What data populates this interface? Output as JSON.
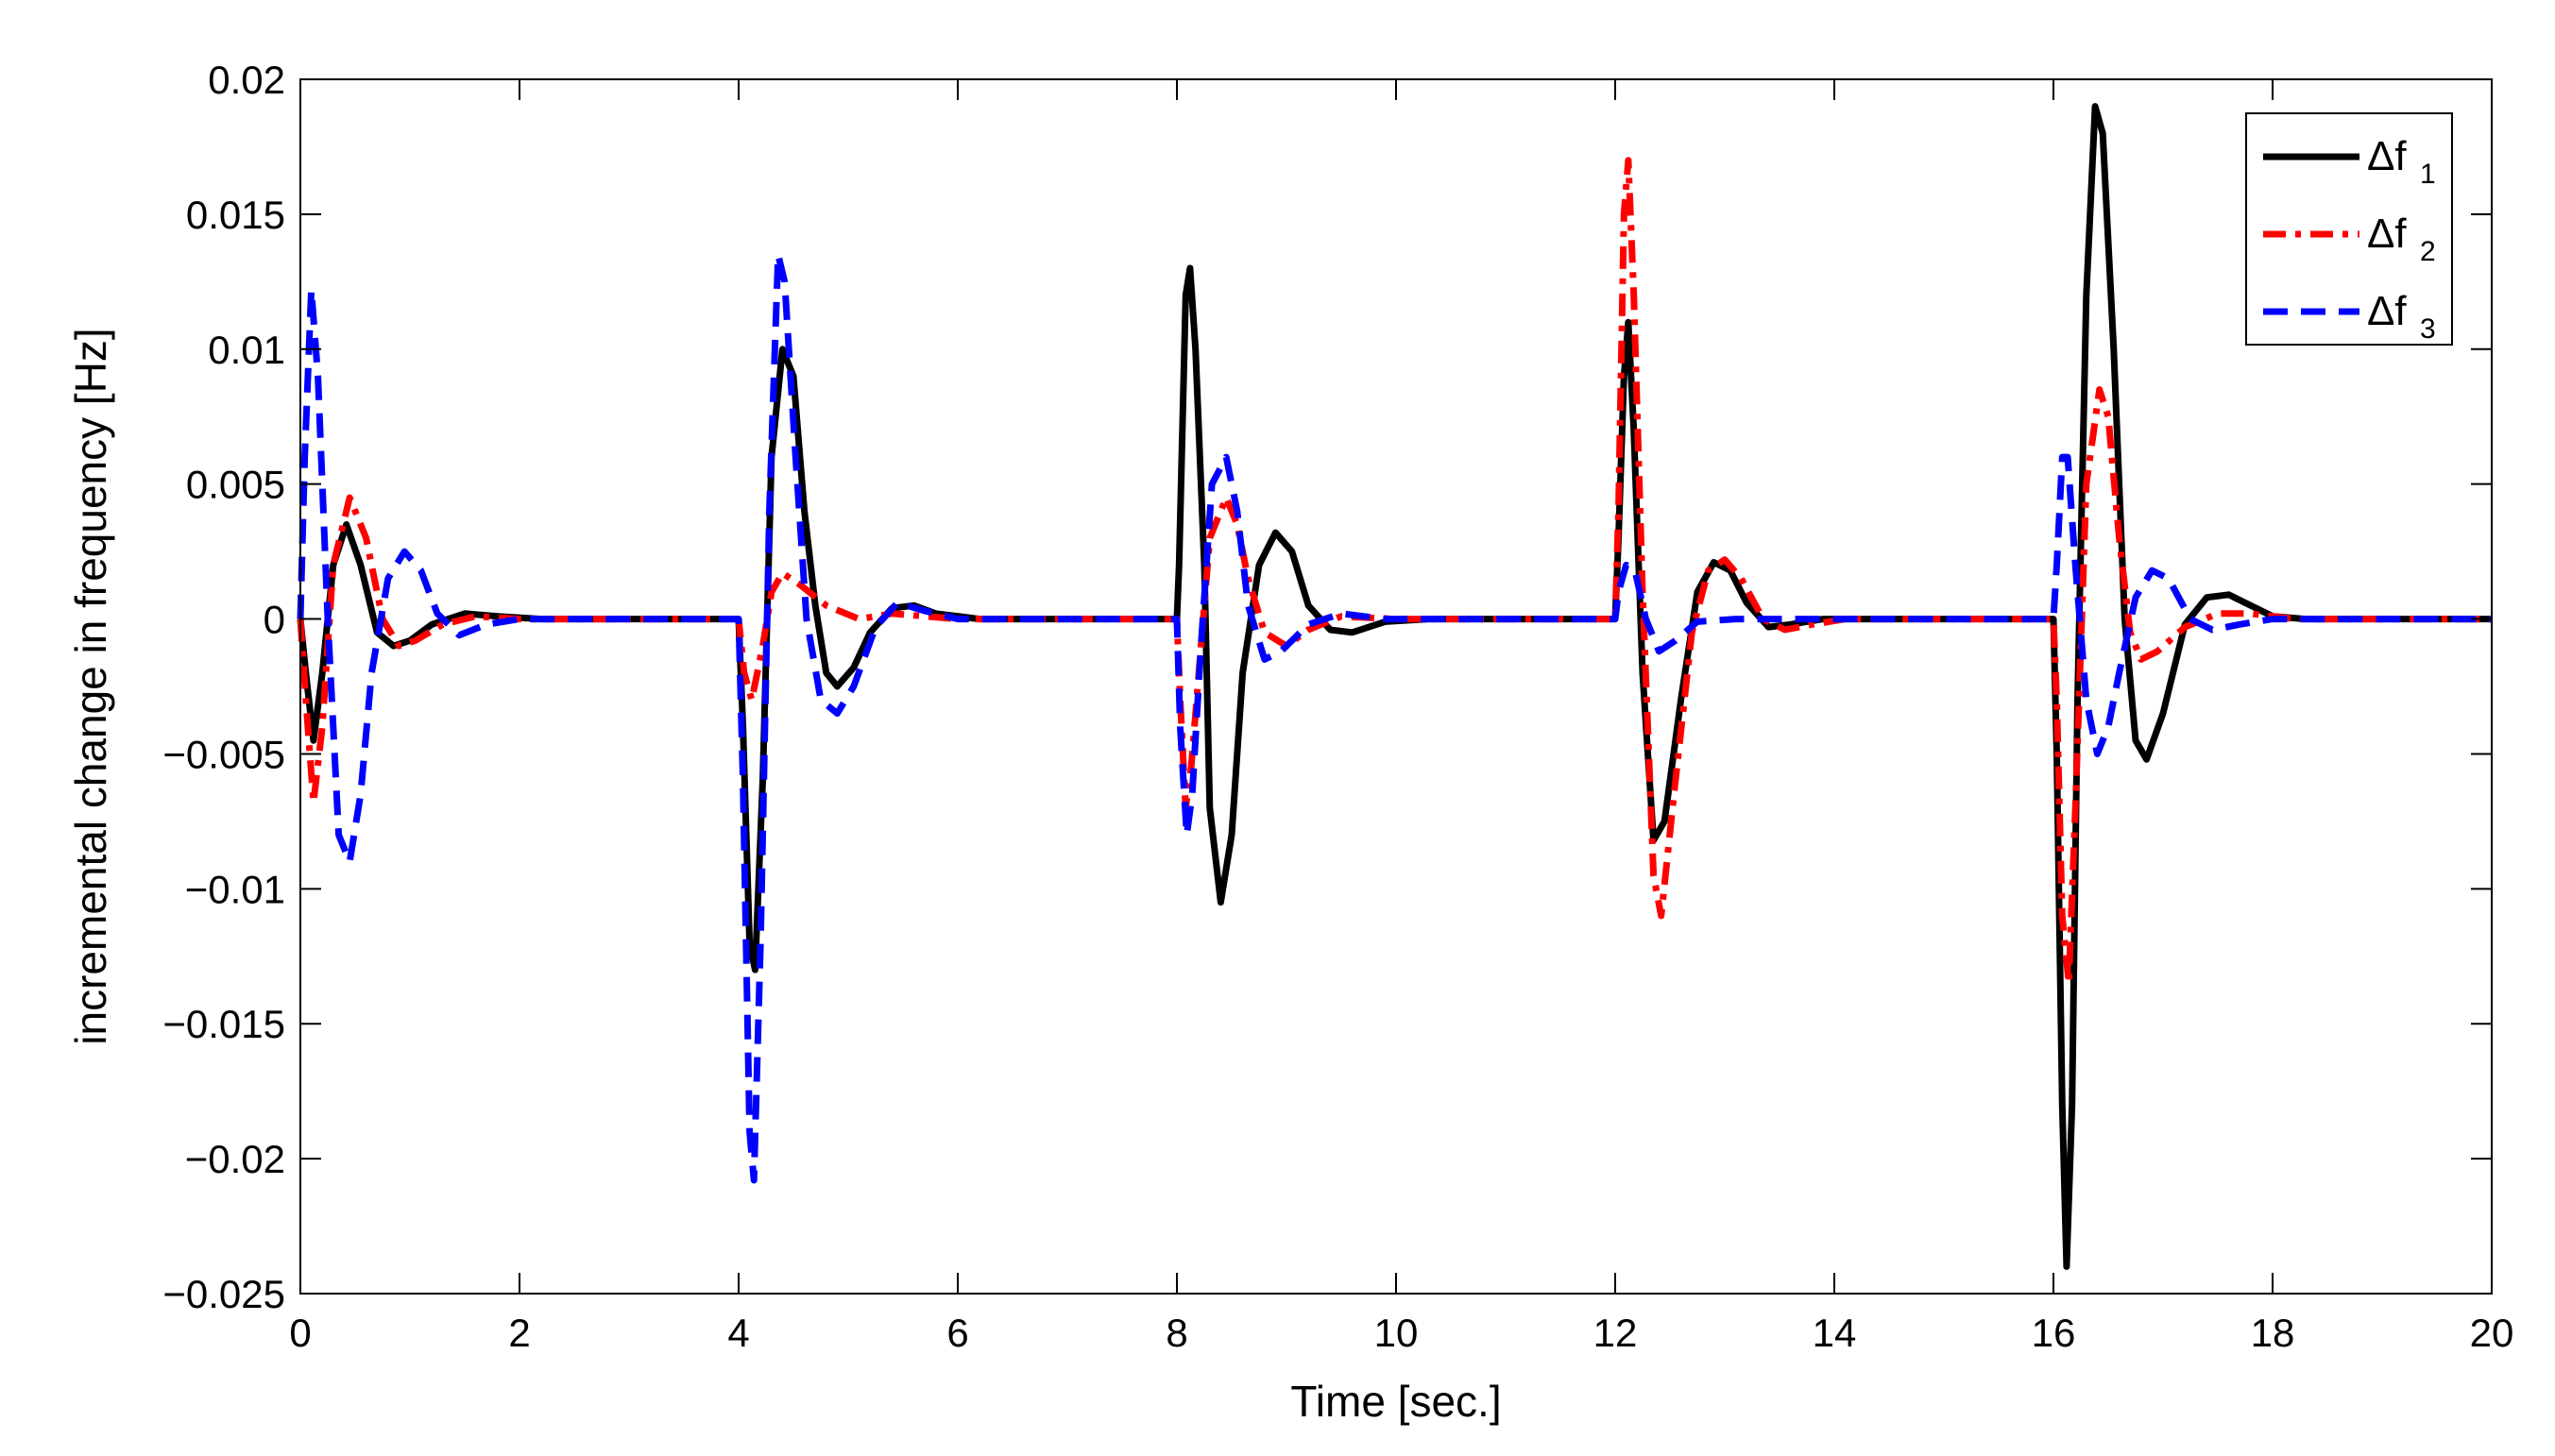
{
  "chart_data": {
    "type": "line",
    "title": "",
    "xlabel": "Time [sec.]",
    "ylabel": "incremental change in frequency [Hz]",
    "xlim": [
      0,
      20
    ],
    "ylim": [
      -0.025,
      0.02
    ],
    "xticks": [
      0,
      2,
      4,
      6,
      8,
      10,
      12,
      14,
      16,
      18,
      20
    ],
    "xtick_labels": [
      "0",
      "2",
      "4",
      "6",
      "8",
      "10",
      "12",
      "14",
      "16",
      "18",
      "20"
    ],
    "yticks": [
      0.02,
      0.015,
      0.01,
      0.005,
      0,
      -0.005,
      -0.01,
      -0.015,
      -0.02,
      -0.025
    ],
    "ytick_labels": [
      "0.02",
      "0.015",
      "0.01",
      "0.005",
      "0",
      "−0.005",
      "−0.01",
      "−0.015",
      "−0.02",
      "−0.025"
    ],
    "grid": false,
    "legend_position": "top-right",
    "series": [
      {
        "name": "Δf1",
        "label_main": "Δf",
        "label_sub": "1",
        "color": "#000000",
        "style": "solid",
        "points": [
          [
            0,
            0
          ],
          [
            0.05,
            -0.002
          ],
          [
            0.12,
            -0.0045
          ],
          [
            0.2,
            -0.002
          ],
          [
            0.3,
            0.002
          ],
          [
            0.42,
            0.0035
          ],
          [
            0.55,
            0.002
          ],
          [
            0.7,
            -0.0005
          ],
          [
            0.85,
            -0.001
          ],
          [
            1.0,
            -0.0008
          ],
          [
            1.2,
            -0.0002
          ],
          [
            1.5,
            0.0002
          ],
          [
            1.8,
            0.0001
          ],
          [
            2.2,
            0
          ],
          [
            4.0,
            0
          ],
          [
            4.04,
            -0.004
          ],
          [
            4.1,
            -0.012
          ],
          [
            4.15,
            -0.013
          ],
          [
            4.22,
            -0.006
          ],
          [
            4.3,
            0.006
          ],
          [
            4.4,
            0.01
          ],
          [
            4.5,
            0.009
          ],
          [
            4.6,
            0.004
          ],
          [
            4.7,
            0.0005
          ],
          [
            4.8,
            -0.002
          ],
          [
            4.9,
            -0.0025
          ],
          [
            5.05,
            -0.0018
          ],
          [
            5.2,
            -0.0005
          ],
          [
            5.4,
            0.0004
          ],
          [
            5.6,
            0.0005
          ],
          [
            5.8,
            0.0002
          ],
          [
            6.2,
            0
          ],
          [
            8.0,
            0
          ],
          [
            8.02,
            0.002
          ],
          [
            8.08,
            0.012
          ],
          [
            8.12,
            0.013
          ],
          [
            8.17,
            0.01
          ],
          [
            8.25,
            0.002
          ],
          [
            8.3,
            -0.007
          ],
          [
            8.4,
            -0.0105
          ],
          [
            8.5,
            -0.008
          ],
          [
            8.6,
            -0.002
          ],
          [
            8.75,
            0.002
          ],
          [
            8.9,
            0.0032
          ],
          [
            9.05,
            0.0025
          ],
          [
            9.2,
            0.0005
          ],
          [
            9.4,
            -0.0004
          ],
          [
            9.6,
            -0.0005
          ],
          [
            9.9,
            -0.0001
          ],
          [
            10.3,
            0
          ],
          [
            12.0,
            0
          ],
          [
            12.03,
            0.003
          ],
          [
            12.08,
            0.009
          ],
          [
            12.12,
            0.011
          ],
          [
            12.17,
            0.007
          ],
          [
            12.25,
            -0.002
          ],
          [
            12.35,
            -0.0082
          ],
          [
            12.45,
            -0.0075
          ],
          [
            12.6,
            -0.003
          ],
          [
            12.75,
            0.001
          ],
          [
            12.9,
            0.0021
          ],
          [
            13.05,
            0.0018
          ],
          [
            13.2,
            0.0006
          ],
          [
            13.4,
            -0.0003
          ],
          [
            13.6,
            -0.0002
          ],
          [
            13.9,
            0
          ],
          [
            16.0,
            0
          ],
          [
            16.03,
            -0.005
          ],
          [
            16.08,
            -0.018
          ],
          [
            16.12,
            -0.024
          ],
          [
            16.17,
            -0.018
          ],
          [
            16.22,
            -0.003
          ],
          [
            16.3,
            0.012
          ],
          [
            16.38,
            0.019
          ],
          [
            16.45,
            0.018
          ],
          [
            16.55,
            0.01
          ],
          [
            16.65,
            0.0
          ],
          [
            16.75,
            -0.0045
          ],
          [
            16.85,
            -0.0052
          ],
          [
            17.0,
            -0.0035
          ],
          [
            17.2,
            -0.0002
          ],
          [
            17.4,
            0.0008
          ],
          [
            17.6,
            0.0009
          ],
          [
            17.8,
            0.0005
          ],
          [
            18.0,
            0.0001
          ],
          [
            18.3,
            0
          ],
          [
            20,
            0
          ]
        ]
      },
      {
        "name": "Δf2",
        "label_main": "Δf",
        "label_sub": "2",
        "color": "#ff0000",
        "style": "dashdot",
        "points": [
          [
            0,
            0
          ],
          [
            0.05,
            -0.003
          ],
          [
            0.12,
            -0.0068
          ],
          [
            0.2,
            -0.004
          ],
          [
            0.3,
            0.002
          ],
          [
            0.45,
            0.0045
          ],
          [
            0.6,
            0.003
          ],
          [
            0.75,
            0.0
          ],
          [
            0.9,
            -0.001
          ],
          [
            1.05,
            -0.0008
          ],
          [
            1.3,
            -0.0002
          ],
          [
            1.6,
            0.0001
          ],
          [
            2.0,
            0
          ],
          [
            4.0,
            0
          ],
          [
            4.05,
            -0.002
          ],
          [
            4.12,
            -0.003
          ],
          [
            4.22,
            -0.001
          ],
          [
            4.3,
            0.001
          ],
          [
            4.4,
            0.0017
          ],
          [
            4.55,
            0.0013
          ],
          [
            4.8,
            0.0005
          ],
          [
            5.1,
            0.0
          ],
          [
            5.4,
            0.0002
          ],
          [
            5.7,
            0.0001
          ],
          [
            6.0,
            0
          ],
          [
            8.0,
            0
          ],
          [
            8.03,
            -0.003
          ],
          [
            8.08,
            -0.007
          ],
          [
            8.13,
            -0.0055
          ],
          [
            8.2,
            -0.002
          ],
          [
            8.3,
            0.003
          ],
          [
            8.45,
            0.0045
          ],
          [
            8.55,
            0.0035
          ],
          [
            8.65,
            0.0015
          ],
          [
            8.8,
            -0.0005
          ],
          [
            9.0,
            -0.001
          ],
          [
            9.2,
            -0.0004
          ],
          [
            9.5,
            0.0001
          ],
          [
            10.0,
            0
          ],
          [
            12.0,
            0
          ],
          [
            12.03,
            0.004
          ],
          [
            12.08,
            0.015
          ],
          [
            12.12,
            0.017
          ],
          [
            12.17,
            0.012
          ],
          [
            12.25,
            0.001
          ],
          [
            12.35,
            -0.0095
          ],
          [
            12.42,
            -0.011
          ],
          [
            12.55,
            -0.006
          ],
          [
            12.7,
            -0.0005
          ],
          [
            12.85,
            0.0018
          ],
          [
            13.0,
            0.0022
          ],
          [
            13.15,
            0.0015
          ],
          [
            13.35,
            0.0
          ],
          [
            13.55,
            -0.0004
          ],
          [
            13.8,
            -0.0002
          ],
          [
            14.1,
            0
          ],
          [
            16.0,
            0
          ],
          [
            16.03,
            -0.003
          ],
          [
            16.08,
            -0.011
          ],
          [
            16.14,
            -0.0135
          ],
          [
            16.2,
            -0.007
          ],
          [
            16.3,
            0.005
          ],
          [
            16.42,
            0.0085
          ],
          [
            16.5,
            0.0075
          ],
          [
            16.6,
            0.003
          ],
          [
            16.7,
            -0.0005
          ],
          [
            16.8,
            -0.0015
          ],
          [
            16.95,
            -0.0012
          ],
          [
            17.2,
            -0.0003
          ],
          [
            17.5,
            0.0002
          ],
          [
            17.8,
            0.0002
          ],
          [
            18.2,
            0
          ],
          [
            20,
            0
          ]
        ]
      },
      {
        "name": "Δf3",
        "label_main": "Δf",
        "label_sub": "3",
        "color": "#0000ff",
        "style": "dashed",
        "points": [
          [
            0,
            0
          ],
          [
            0.04,
            0.006
          ],
          [
            0.1,
            0.0122
          ],
          [
            0.16,
            0.009
          ],
          [
            0.25,
            0.0
          ],
          [
            0.35,
            -0.008
          ],
          [
            0.45,
            -0.009
          ],
          [
            0.55,
            -0.0065
          ],
          [
            0.65,
            -0.002
          ],
          [
            0.8,
            0.0015
          ],
          [
            0.95,
            0.0025
          ],
          [
            1.1,
            0.0018
          ],
          [
            1.25,
            0.0002
          ],
          [
            1.45,
            -0.0006
          ],
          [
            1.7,
            -0.0002
          ],
          [
            2.0,
            0
          ],
          [
            4.0,
            0
          ],
          [
            4.04,
            -0.006
          ],
          [
            4.1,
            -0.019
          ],
          [
            4.14,
            -0.0208
          ],
          [
            4.2,
            -0.012
          ],
          [
            4.28,
            0.004
          ],
          [
            4.36,
            0.0135
          ],
          [
            4.42,
            0.0125
          ],
          [
            4.52,
            0.006
          ],
          [
            4.62,
            0.0
          ],
          [
            4.75,
            -0.003
          ],
          [
            4.9,
            -0.0035
          ],
          [
            5.05,
            -0.0025
          ],
          [
            5.25,
            -0.0003
          ],
          [
            5.45,
            0.0006
          ],
          [
            5.7,
            0.0003
          ],
          [
            6.0,
            0
          ],
          [
            8.0,
            0
          ],
          [
            8.03,
            -0.004
          ],
          [
            8.09,
            -0.008
          ],
          [
            8.14,
            -0.0065
          ],
          [
            8.22,
            -0.001
          ],
          [
            8.32,
            0.005
          ],
          [
            8.45,
            0.006
          ],
          [
            8.55,
            0.004
          ],
          [
            8.65,
            0.0005
          ],
          [
            8.8,
            -0.0015
          ],
          [
            8.95,
            -0.0012
          ],
          [
            9.2,
            -0.0002
          ],
          [
            9.5,
            0.0002
          ],
          [
            9.9,
            0
          ],
          [
            12.0,
            0
          ],
          [
            12.03,
            0.001
          ],
          [
            12.1,
            0.002
          ],
          [
            12.18,
            0.0018
          ],
          [
            12.28,
            0.0
          ],
          [
            12.4,
            -0.0012
          ],
          [
            12.55,
            -0.0008
          ],
          [
            12.75,
            -0.0001
          ],
          [
            13.1,
            0
          ],
          [
            16.0,
            0
          ],
          [
            16.03,
            0.002
          ],
          [
            16.08,
            0.006
          ],
          [
            16.13,
            0.006
          ],
          [
            16.2,
            0.002
          ],
          [
            16.3,
            -0.003
          ],
          [
            16.4,
            -0.005
          ],
          [
            16.5,
            -0.004
          ],
          [
            16.6,
            -0.002
          ],
          [
            16.75,
            0.0008
          ],
          [
            16.9,
            0.0018
          ],
          [
            17.05,
            0.0015
          ],
          [
            17.25,
            0.0
          ],
          [
            17.45,
            -0.0004
          ],
          [
            17.7,
            -0.0002
          ],
          [
            18.0,
            0
          ],
          [
            20,
            0
          ]
        ]
      }
    ]
  }
}
